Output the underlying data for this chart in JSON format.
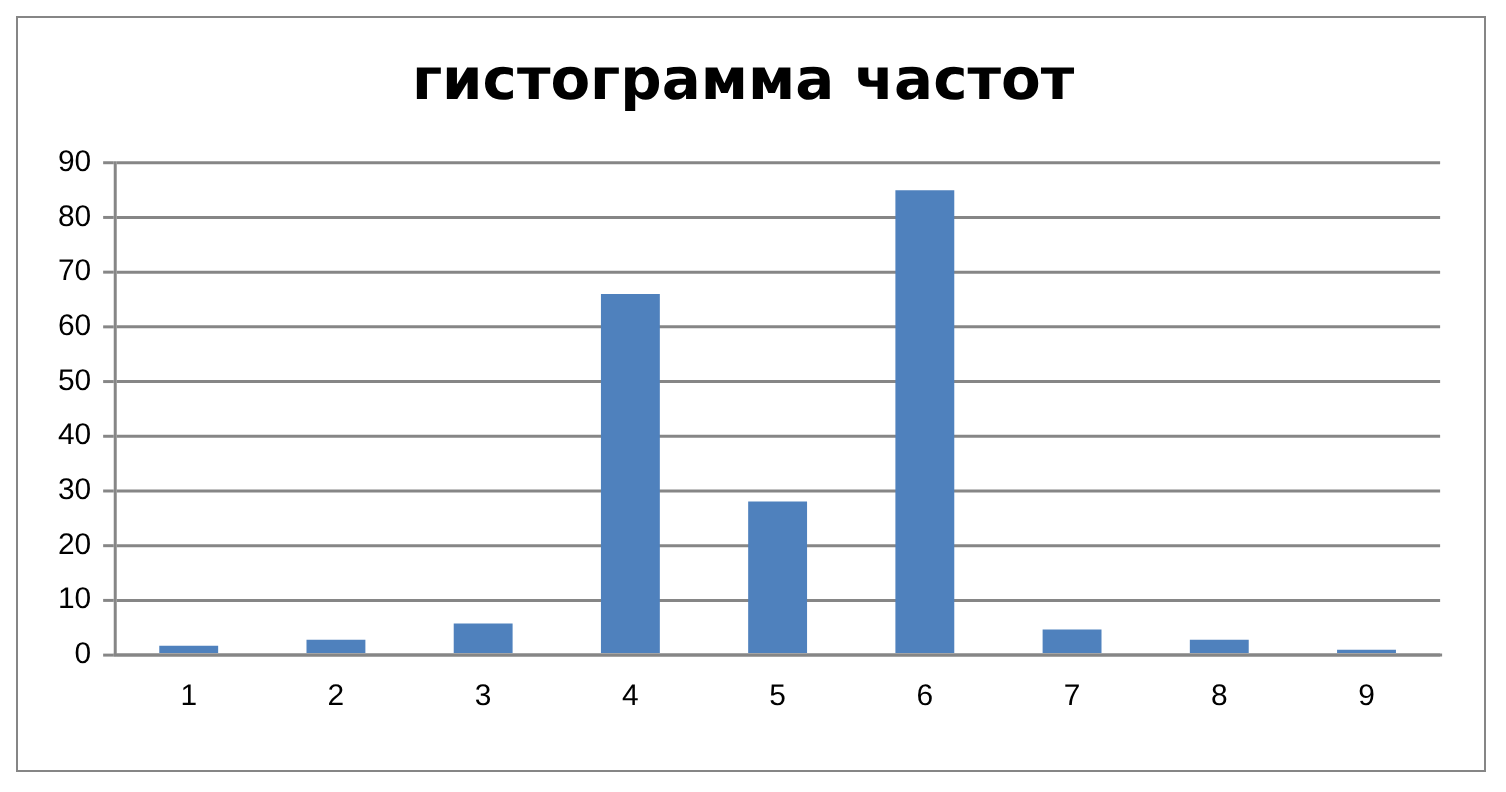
{
  "chart_data": {
    "type": "bar",
    "title": "гистограмма частот",
    "categories": [
      "1",
      "2",
      "3",
      "4",
      "5",
      "6",
      "7",
      "8",
      "9"
    ],
    "values": [
      1.6,
      2.7,
      5.7,
      66,
      28,
      85,
      4.6,
      2.7,
      0.9
    ],
    "color": "#4f81bd",
    "ylim": [
      0,
      90
    ],
    "yticks": [
      0,
      10,
      20,
      30,
      40,
      50,
      60,
      70,
      80,
      90
    ],
    "grid": "y",
    "legend": false
  }
}
